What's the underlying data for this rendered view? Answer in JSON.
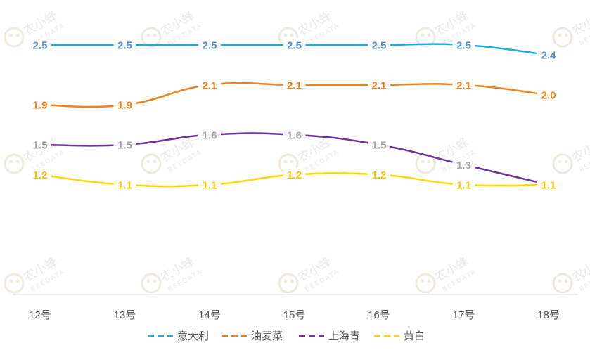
{
  "chart_data": {
    "type": "line",
    "title": "",
    "xlabel": "",
    "ylabel": "",
    "categories": [
      "12号",
      "13号",
      "14号",
      "15号",
      "16号",
      "17号",
      "18号"
    ],
    "ylim": [
      0,
      2.8
    ],
    "grid": false,
    "legend_position": "bottom",
    "series": [
      {
        "name": "意大利",
        "color": "#1aaee5",
        "label_color": "#5b8fc9",
        "values": [
          2.5,
          2.5,
          2.5,
          2.5,
          2.5,
          2.5,
          2.4
        ],
        "labels": [
          "2.5",
          "2.5",
          "2.5",
          "2.5",
          "2.5",
          "2.5",
          "2.4"
        ]
      },
      {
        "name": "油麦菜",
        "color": "#f0821e",
        "label_color": "#f0821e",
        "values": [
          1.9,
          1.9,
          2.1,
          2.1,
          2.1,
          2.1,
          2.0
        ],
        "labels": [
          "1.9",
          "1.9",
          "2.1",
          "2.1",
          "2.1",
          "2.1",
          "2.0"
        ]
      },
      {
        "name": "上海青",
        "color": "#7030a0",
        "label_color": "#a5a5a5",
        "values": [
          1.5,
          1.5,
          1.6,
          1.6,
          1.5,
          1.3,
          1.1
        ],
        "labels": [
          "1.5",
          "1.5",
          "1.6",
          "1.6",
          "1.5",
          "1.3",
          "1.1"
        ]
      },
      {
        "name": "黄白",
        "color": "#ffd700",
        "label_color": "#ffc000",
        "values": [
          1.2,
          1.1,
          1.1,
          1.2,
          1.2,
          1.1,
          1.1
        ],
        "labels": [
          "1.2",
          "1.1",
          "1.1",
          "1.2",
          "1.2",
          "1.1",
          "1.1"
        ]
      }
    ]
  },
  "watermark": {
    "brand": "农小蜂",
    "sub": "BEEDATA"
  }
}
